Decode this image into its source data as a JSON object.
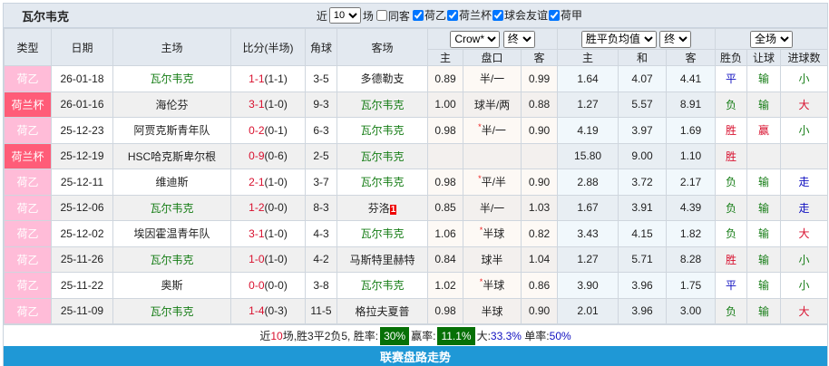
{
  "team": "瓦尔韦克",
  "filters": {
    "recent_prefix": "近",
    "recent_count": "10",
    "recent_suffix": "场",
    "same_away": "同客",
    "same_away_checked": false,
    "leagues": [
      {
        "label": "荷乙",
        "checked": true
      },
      {
        "label": "荷兰杯",
        "checked": true
      },
      {
        "label": "球会友谊",
        "checked": true
      },
      {
        "label": "荷甲",
        "checked": true
      }
    ]
  },
  "headers": {
    "type": "类型",
    "date": "日期",
    "home": "主场",
    "score": "比分(半场)",
    "corner": "角球",
    "away": "客场",
    "bookmaker": "Crow*",
    "bookmaker_stage": "终",
    "odds_type": "胜平负均值",
    "odds_stage": "终",
    "scope": "全场",
    "ah_home": "主",
    "ah_line": "盘口",
    "ah_away": "客",
    "o_home": "主",
    "o_draw": "和",
    "o_away": "客",
    "wl": "胜负",
    "hc": "让球",
    "ou": "进球数"
  },
  "colors": {
    "league_a": "#ffbcd8",
    "league_b": "#ff5c78",
    "green": "#167d16",
    "red": "#d8102e",
    "blue": "#1010c0",
    "footer": "#1f98d6"
  },
  "rows": [
    {
      "type": "荷乙",
      "tc": "a",
      "date": "26-01-18",
      "home": "瓦尔韦克",
      "hg": true,
      "score": "1-1",
      "half": "(1-1)",
      "corner": "3-5",
      "away": "多德勒支",
      "ag": false,
      "card": "",
      "ah_h": "0.89",
      "star": false,
      "line": "半/一",
      "ah_a": "0.99",
      "oh": "1.64",
      "od": "4.07",
      "oa": "4.41",
      "wl": "平",
      "wlc": "b",
      "hc": "输",
      "hcc": "g",
      "ou": "小",
      "ouc": "g"
    },
    {
      "type": "荷兰杯",
      "tc": "b",
      "date": "26-01-16",
      "home": "海伦芬",
      "hg": false,
      "score": "3-1",
      "half": "(1-0)",
      "corner": "9-3",
      "away": "瓦尔韦克",
      "ag": true,
      "card": "",
      "ah_h": "1.00",
      "star": false,
      "line": "球半/两",
      "ah_a": "0.88",
      "oh": "1.27",
      "od": "5.57",
      "oa": "8.91",
      "wl": "负",
      "wlc": "g",
      "hc": "输",
      "hcc": "g",
      "ou": "大",
      "ouc": "r"
    },
    {
      "type": "荷乙",
      "tc": "a",
      "date": "25-12-23",
      "home": "阿贾克斯青年队",
      "hg": false,
      "score": "0-2",
      "half": "(0-1)",
      "corner": "6-3",
      "away": "瓦尔韦克",
      "ag": true,
      "card": "",
      "ah_h": "0.98",
      "star": true,
      "line": "半/一",
      "ah_a": "0.90",
      "oh": "4.19",
      "od": "3.97",
      "oa": "1.69",
      "wl": "胜",
      "wlc": "r",
      "hc": "赢",
      "hcc": "r",
      "ou": "小",
      "ouc": "g"
    },
    {
      "type": "荷兰杯",
      "tc": "b",
      "date": "25-12-19",
      "home": "HSC哈克斯卑尔根",
      "hg": false,
      "score": "0-9",
      "half": "(0-6)",
      "corner": "2-5",
      "away": "瓦尔韦克",
      "ag": true,
      "card": "",
      "ah_h": "",
      "star": false,
      "line": "",
      "ah_a": "",
      "oh": "15.80",
      "od": "9.00",
      "oa": "1.10",
      "wl": "胜",
      "wlc": "r",
      "hc": "",
      "hcc": "g",
      "ou": "",
      "ouc": "g"
    },
    {
      "type": "荷乙",
      "tc": "a",
      "date": "25-12-11",
      "home": "维迪斯",
      "hg": false,
      "score": "2-1",
      "half": "(1-0)",
      "corner": "3-7",
      "away": "瓦尔韦克",
      "ag": true,
      "card": "",
      "ah_h": "0.98",
      "star": true,
      "line": "平/半",
      "ah_a": "0.90",
      "oh": "2.88",
      "od": "3.72",
      "oa": "2.17",
      "wl": "负",
      "wlc": "g",
      "hc": "输",
      "hcc": "g",
      "ou": "走",
      "ouc": "b"
    },
    {
      "type": "荷乙",
      "tc": "a",
      "date": "25-12-06",
      "home": "瓦尔韦克",
      "hg": true,
      "score": "1-2",
      "half": "(0-0)",
      "corner": "8-3",
      "away": "芬洛",
      "ag": false,
      "card": "1",
      "ah_h": "0.85",
      "star": false,
      "line": "半/一",
      "ah_a": "1.03",
      "oh": "1.67",
      "od": "3.91",
      "oa": "4.39",
      "wl": "负",
      "wlc": "g",
      "hc": "输",
      "hcc": "g",
      "ou": "走",
      "ouc": "b"
    },
    {
      "type": "荷乙",
      "tc": "a",
      "date": "25-12-02",
      "home": "埃因霍温青年队",
      "hg": false,
      "score": "3-1",
      "half": "(1-0)",
      "corner": "4-3",
      "away": "瓦尔韦克",
      "ag": true,
      "card": "",
      "ah_h": "1.06",
      "star": true,
      "line": "半球",
      "ah_a": "0.82",
      "oh": "3.43",
      "od": "4.15",
      "oa": "1.82",
      "wl": "负",
      "wlc": "g",
      "hc": "输",
      "hcc": "g",
      "ou": "大",
      "ouc": "r"
    },
    {
      "type": "荷乙",
      "tc": "a",
      "date": "25-11-26",
      "home": "瓦尔韦克",
      "hg": true,
      "score": "1-0",
      "half": "(1-0)",
      "corner": "4-2",
      "away": "马斯特里赫特",
      "ag": false,
      "card": "",
      "ah_h": "0.84",
      "star": false,
      "line": "球半",
      "ah_a": "1.04",
      "oh": "1.27",
      "od": "5.71",
      "oa": "8.28",
      "wl": "胜",
      "wlc": "r",
      "hc": "输",
      "hcc": "g",
      "ou": "小",
      "ouc": "g"
    },
    {
      "type": "荷乙",
      "tc": "a",
      "date": "25-11-22",
      "home": "奥斯",
      "hg": false,
      "score": "0-0",
      "half": "(0-0)",
      "corner": "3-8",
      "away": "瓦尔韦克",
      "ag": true,
      "card": "",
      "ah_h": "1.02",
      "star": true,
      "line": "半球",
      "ah_a": "0.86",
      "oh": "3.90",
      "od": "3.96",
      "oa": "1.75",
      "wl": "平",
      "wlc": "b",
      "hc": "输",
      "hcc": "g",
      "ou": "小",
      "ouc": "g"
    },
    {
      "type": "荷乙",
      "tc": "a",
      "date": "25-11-09",
      "home": "瓦尔韦克",
      "hg": true,
      "score": "1-4",
      "half": "(0-3)",
      "corner": "11-5",
      "away": "格拉夫夏普",
      "ag": false,
      "card": "",
      "ah_h": "0.98",
      "star": false,
      "line": "半球",
      "ah_a": "0.90",
      "oh": "2.01",
      "od": "3.96",
      "oa": "3.00",
      "wl": "负",
      "wlc": "g",
      "hc": "输",
      "hcc": "g",
      "ou": "大",
      "ouc": "r"
    }
  ],
  "summary": {
    "p1": "近",
    "n": "10",
    "p2": "场,胜3平2负5, 胜率:",
    "win_rate": "30%",
    "p3": "赢率:",
    "cover_rate": "11.1%",
    "p4": "大:",
    "over_rate": "33.3%",
    "p5": "单率:",
    "odd_rate": "50%"
  },
  "footer": "联赛盘路走势"
}
